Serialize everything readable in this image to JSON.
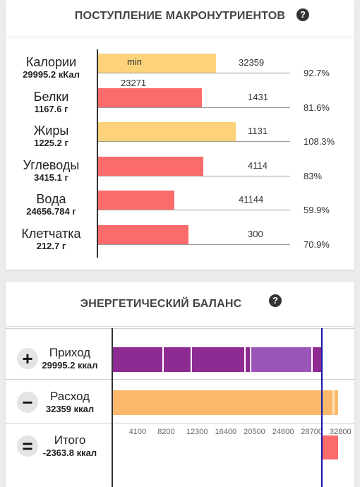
{
  "macro": {
    "title": "ПОСТУПЛЕНИЕ МАКРОНУТРИЕНТОВ",
    "help": "?",
    "min_label": "min",
    "min_value": "23271",
    "rows": [
      {
        "name": "Калории",
        "value": "29995.2 кКал",
        "target": "32359",
        "percent": "92.7%",
        "fraction": 0.927,
        "color": "yellow"
      },
      {
        "name": "Белки",
        "value": "1167.6 г",
        "target": "1431",
        "percent": "81.6%",
        "fraction": 0.816,
        "color": "red"
      },
      {
        "name": "Жиры",
        "value": "1225.2 г",
        "target": "1131",
        "percent": "108.3%",
        "fraction": 1.083,
        "color": "yellow"
      },
      {
        "name": "Углеводы",
        "value": "3415.1 г",
        "target": "4114",
        "percent": "83%",
        "fraction": 0.83,
        "color": "red"
      },
      {
        "name": "Вода",
        "value": "24656.784 г",
        "target": "41144",
        "percent": "59.9%",
        "fraction": 0.599,
        "color": "red"
      },
      {
        "name": "Клетчатка",
        "value": "212.7 г",
        "target": "300",
        "percent": "70.9%",
        "fraction": 0.709,
        "color": "red"
      }
    ]
  },
  "energy": {
    "title": "ЭНЕРГЕТИЧЕСКИЙ БАЛАНС",
    "help": "?",
    "rows": [
      {
        "sign": "+",
        "name": "Приход",
        "value": "29995.2 ккал"
      },
      {
        "sign": "−",
        "name": "Расход",
        "value": "32359 ккал"
      },
      {
        "sign": "=",
        "name": "Итого",
        "value": "-2363.8 ккал"
      }
    ],
    "axis_ticks": [
      "4100",
      "8200",
      "12300",
      "16400",
      "20500",
      "24600",
      "28700",
      "32800"
    ],
    "axis_max": 32800,
    "income_total": 29995.2,
    "expense_total": 32359,
    "balance": -2363.8,
    "colors": {
      "income_dark": "#8e2b93",
      "income_light": "#9a55b8",
      "expense": "#fdb96b",
      "balance": "#fc6b6b",
      "marker": "#1a1aa8"
    }
  }
}
